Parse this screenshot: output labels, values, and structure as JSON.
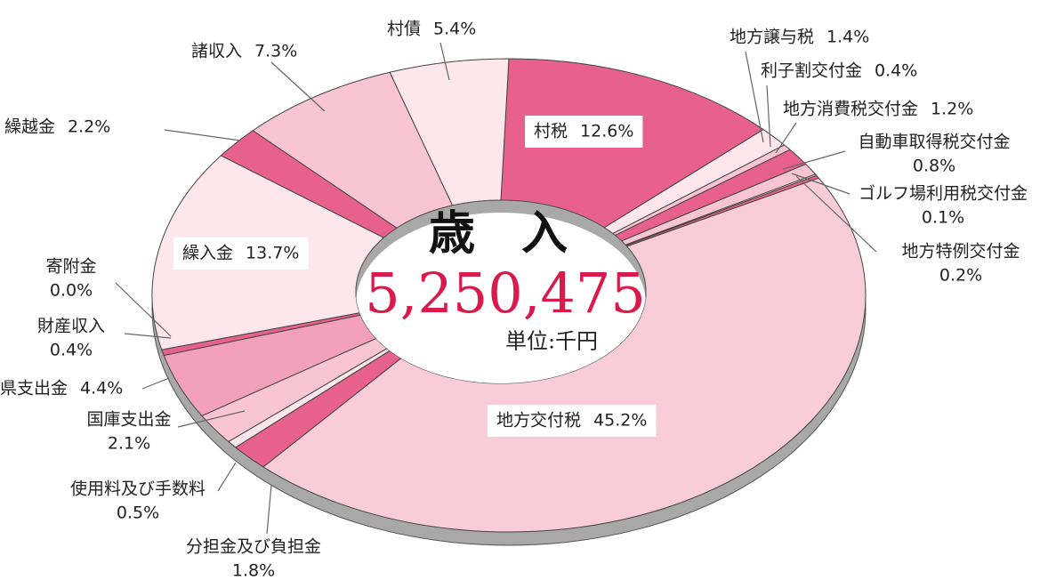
{
  "chart_data": {
    "type": "donut",
    "title": "歳　入",
    "total": "5,250,475",
    "unit": "単位:千円",
    "categories": [
      "村税",
      "地方譲与税",
      "利子割交付金",
      "地方消費税交付金",
      "自動車取得税交付金",
      "ゴルフ場利用税交付金",
      "地方特例交付金",
      "地方交付税",
      "分担金及び負担金",
      "使用料及び手数料",
      "国庫支出金",
      "県支出金",
      "財産収入",
      "寄附金",
      "繰入金",
      "繰越金",
      "諸収入",
      "村債"
    ],
    "values": [
      12.6,
      1.4,
      0.4,
      1.2,
      0.8,
      0.1,
      0.2,
      45.2,
      1.8,
      0.5,
      2.1,
      4.4,
      0.4,
      0.0,
      13.7,
      2.2,
      7.3,
      5.4
    ],
    "value_labels": [
      "12.6%",
      "1.4%",
      "0.4%",
      "1.2%",
      "0.8%",
      "0.1%",
      "0.2%",
      "45.2%",
      "1.8%",
      "0.5%",
      "2.1%",
      "4.4%",
      "0.4%",
      "0.0%",
      "13.7%",
      "2.2%",
      "7.3%",
      "5.4%"
    ],
    "colors": [
      "#e8608e",
      "#fde6ec",
      "#f9c4d4",
      "#e8608e",
      "#f9c4d4",
      "#fde6ec",
      "#e8608e",
      "#f9ccda",
      "#e8608e",
      "#fde6ec",
      "#f9c4d4",
      "#f2a0bb",
      "#e8608e",
      "#fde6ec",
      "#fde6ec",
      "#e8608e",
      "#f9c4d4",
      "#fde6ec"
    ]
  }
}
